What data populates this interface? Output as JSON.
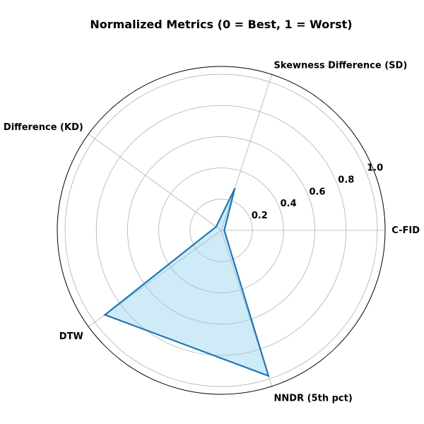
{
  "chart_data": {
    "type": "radar",
    "title": "Normalized Metrics (0 = Best, 1 = Worst)",
    "categories": [
      "C-FID",
      "Skewness Difference (SD)",
      "Kurtosis Difference (KD)",
      "DTW",
      "NNDR (5th pct)"
    ],
    "series": [
      {
        "values": [
          0.02,
          0.28,
          0.04,
          0.92,
          0.98
        ]
      }
    ],
    "rlim": [
      0,
      1.05
    ],
    "rticks": [
      0.2,
      0.4,
      0.6,
      0.8,
      1.0
    ],
    "rtick_labels": [
      "0.2",
      "0.4",
      "0.6",
      "0.8",
      "1.0"
    ],
    "grid": true,
    "colors": {
      "line": "#1f77b4",
      "fill": "#87ceeb",
      "grid": "#b0b0b0",
      "frame": "#000000"
    }
  }
}
